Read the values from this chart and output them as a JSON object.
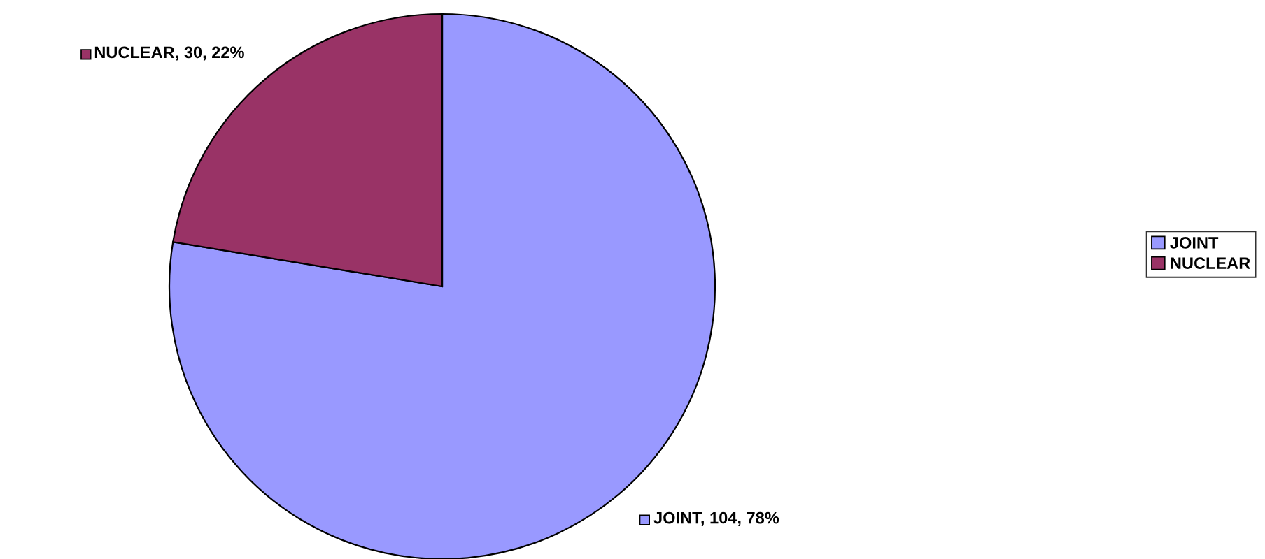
{
  "chart_data": {
    "type": "pie",
    "categories": [
      "JOINT",
      "NUCLEAR"
    ],
    "values": [
      104,
      30
    ],
    "colors": [
      "#9999ff",
      "#993366"
    ],
    "value_labels": [
      "JOINT, 104, 78%",
      "NUCLEAR, 30, 22%"
    ],
    "legend": "right"
  }
}
